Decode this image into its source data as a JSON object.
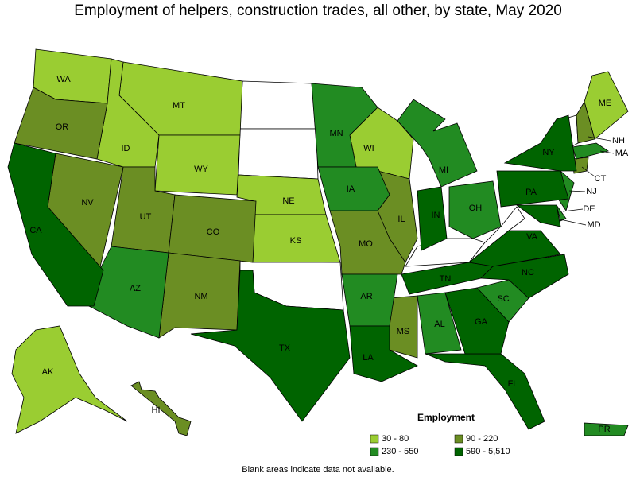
{
  "title": "Employment of helpers, construction trades, all other, by state, May 2020",
  "legend": {
    "title": "Employment",
    "items": [
      {
        "label": "30 - 80",
        "color": "#9acd32",
        "states": [
          "WA",
          "MT",
          "ID",
          "WY",
          "NE",
          "KS",
          "WI",
          "ME",
          "AK"
        ]
      },
      {
        "label": "90 - 220",
        "color": "#6b8e23",
        "states": [
          "OR",
          "NV",
          "UT",
          "CO",
          "NM",
          "MO",
          "IL",
          "MS",
          "HI",
          "NH",
          "CT"
        ]
      },
      {
        "label": "230 - 550",
        "color": "#228b22",
        "states": [
          "MN",
          "IA",
          "MI",
          "AZ",
          "AR",
          "AL",
          "SC",
          "OH",
          "NJ",
          "PR",
          "MA",
          "DE"
        ]
      },
      {
        "label": "590 - 5,510",
        "color": "#006400",
        "states": [
          "CA",
          "TX",
          "LA",
          "FL",
          "GA",
          "TN",
          "NC",
          "VA",
          "PA",
          "NY",
          "IN",
          "MD"
        ]
      }
    ]
  },
  "footnote": "Blank areas indicate data not available."
}
